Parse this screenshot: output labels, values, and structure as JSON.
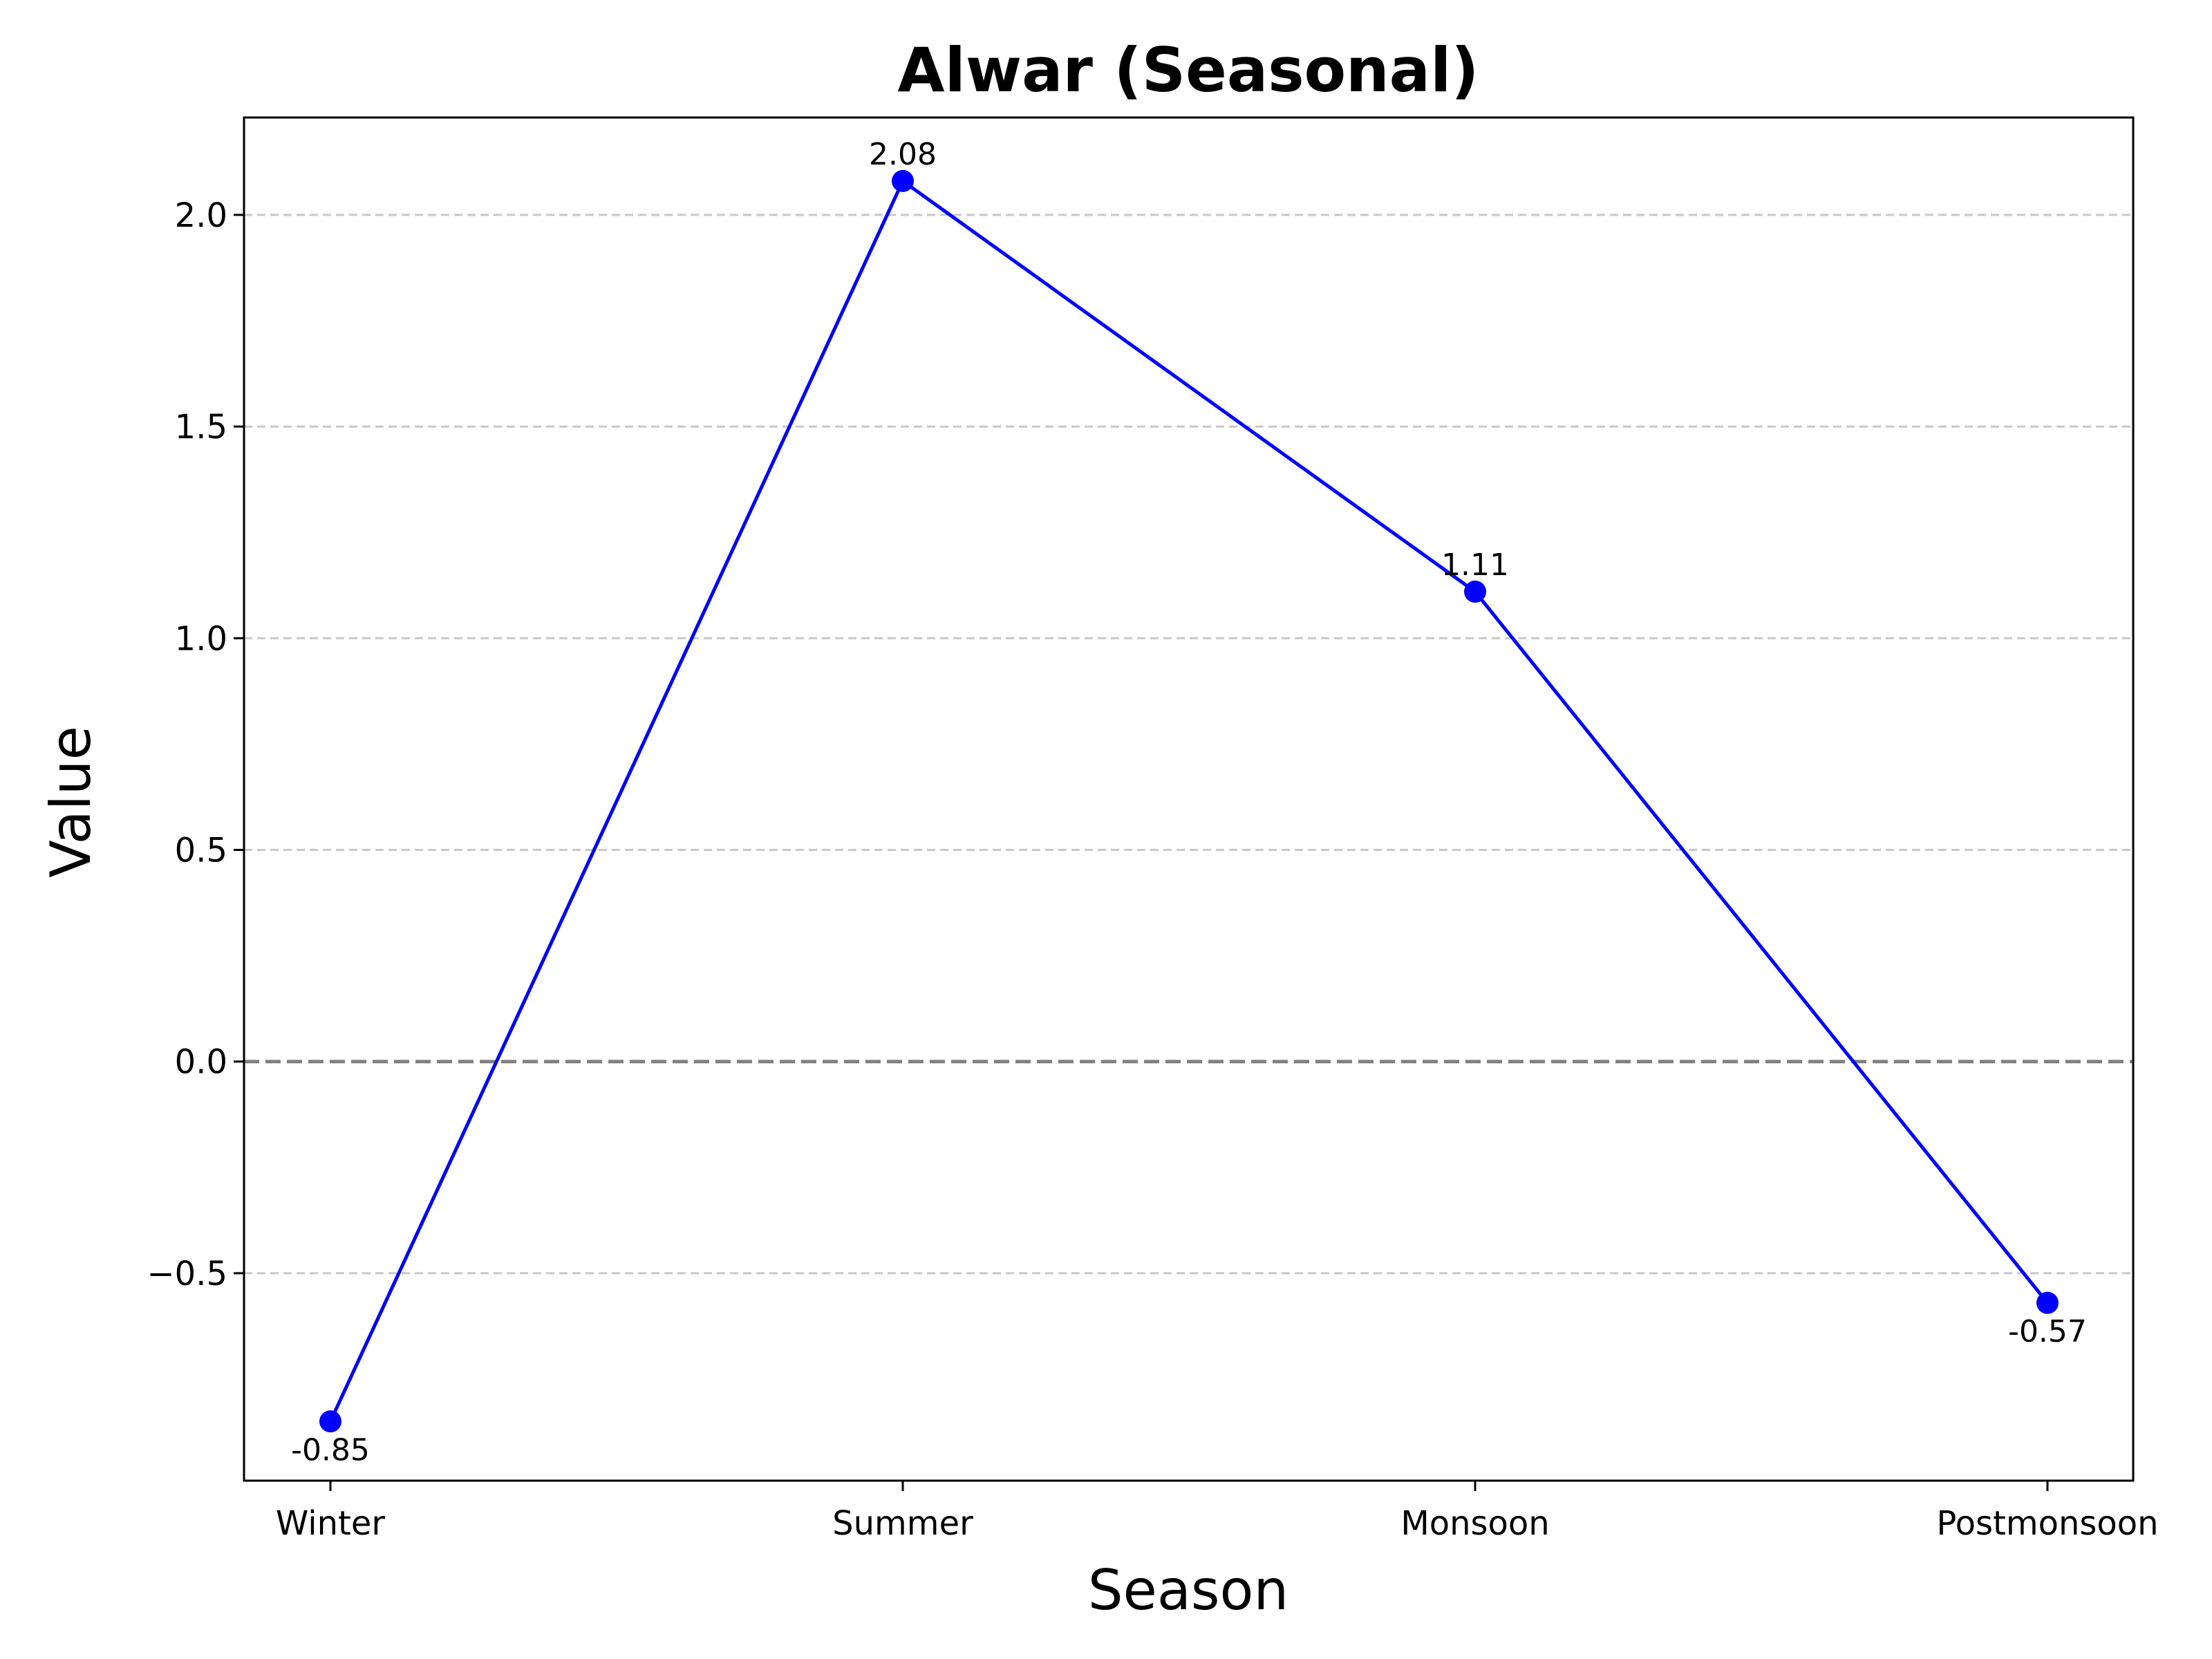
{
  "chart_data": {
    "type": "line",
    "title": "Alwar (Seasonal)",
    "xlabel": "Season",
    "ylabel": "Value",
    "categories": [
      "Winter",
      "Summer",
      "Monsoon",
      "Postmonsoon"
    ],
    "series": [
      {
        "values": [
          -0.85,
          2.08,
          1.11,
          -0.57
        ],
        "value_labels": [
          "-0.85",
          "2.08",
          "1.11",
          "-0.57"
        ],
        "color": "#0000ff"
      }
    ],
    "ylim": [
      -0.99,
      2.23
    ],
    "yticks": [
      -0.5,
      0.0,
      0.5,
      1.0,
      1.5,
      2.0
    ],
    "ytick_labels": [
      "−0.5",
      "0.0",
      "0.5",
      "1.0",
      "1.5",
      "2.0"
    ],
    "grid": "y-dashed",
    "reference_line": {
      "y": 0,
      "color": "#808080",
      "style": "dashed"
    },
    "legend": "none"
  }
}
